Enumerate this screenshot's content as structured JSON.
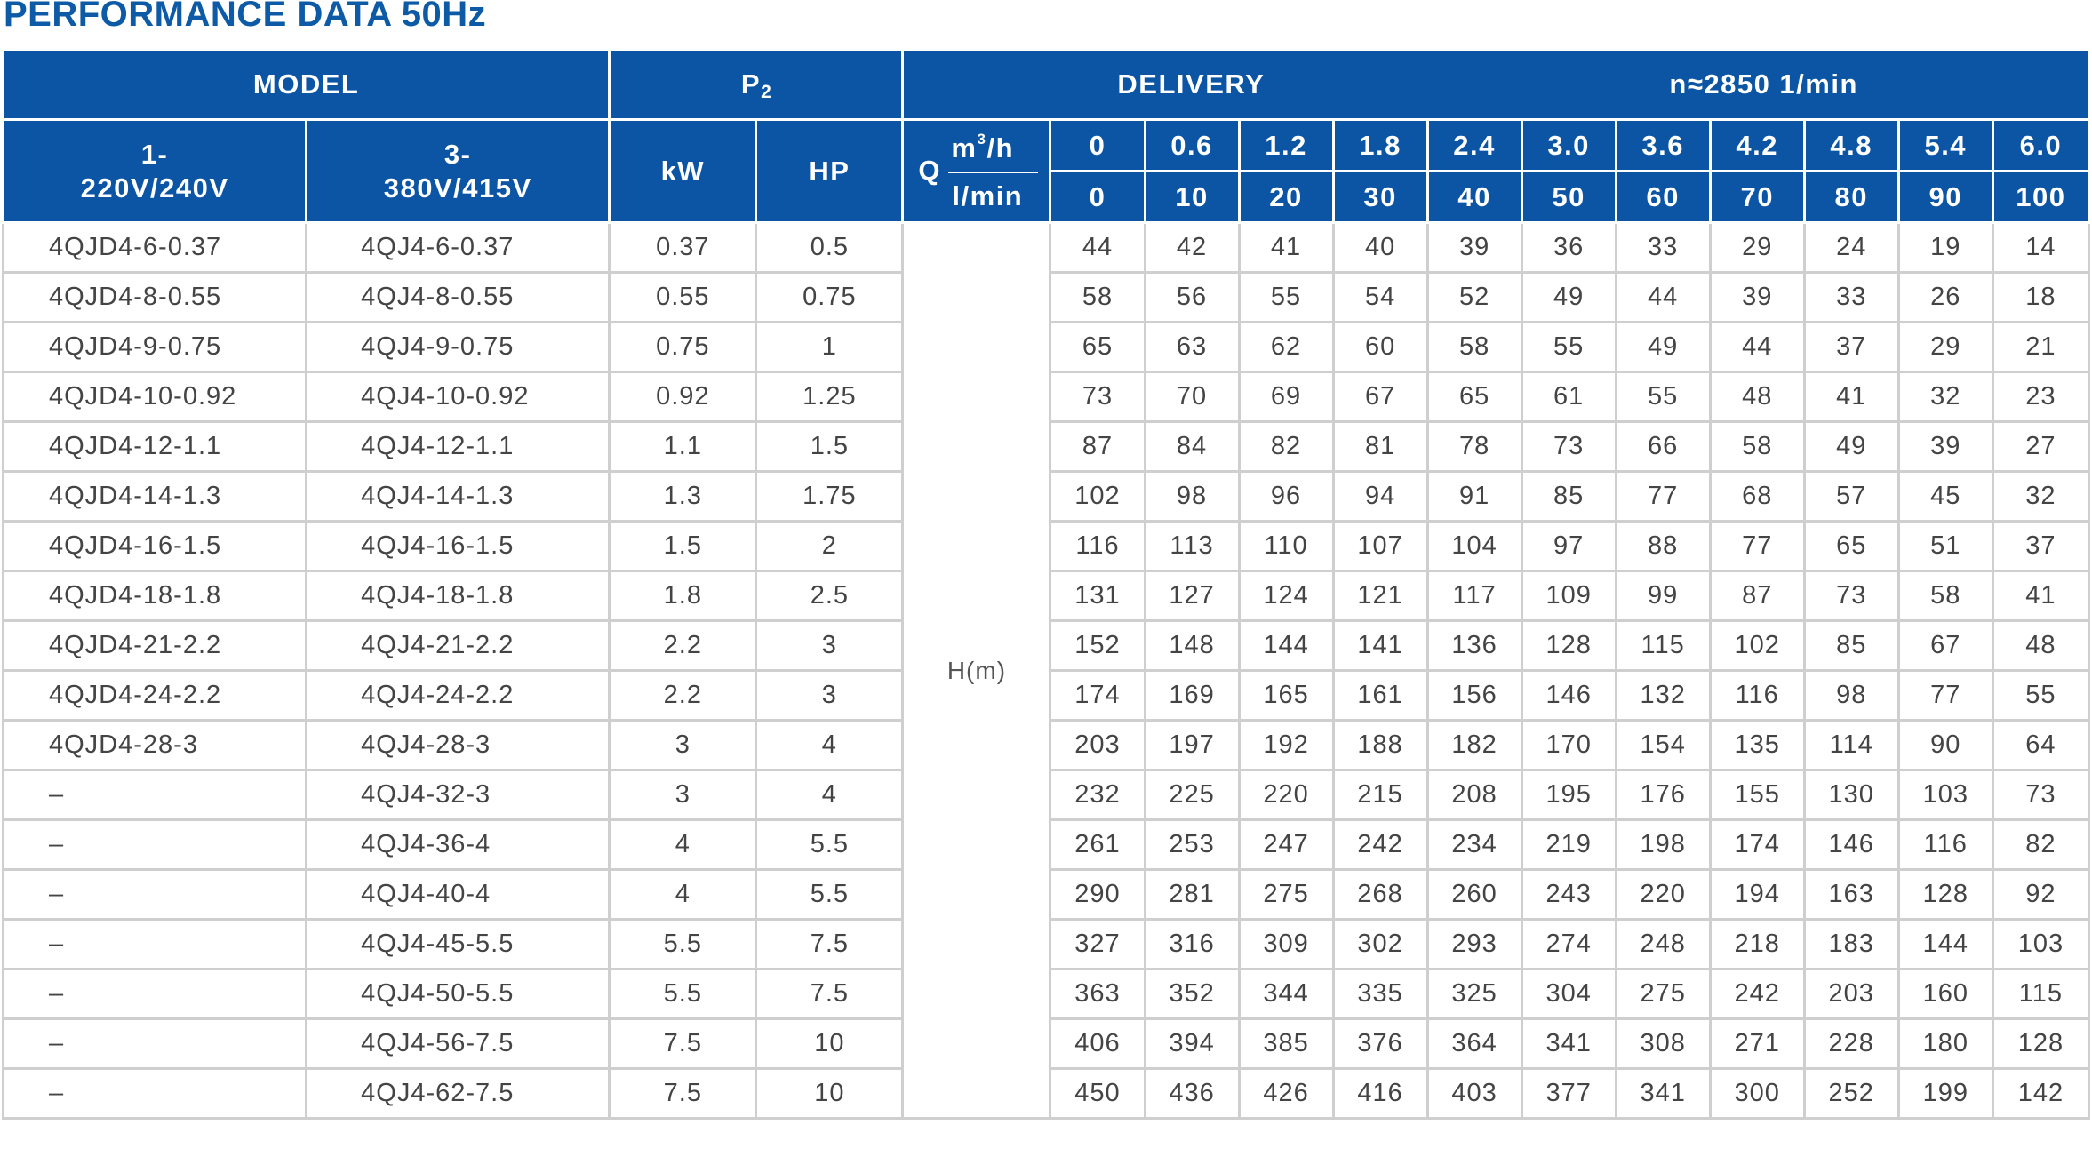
{
  "title": "PERFORMANCE DATA 50Hz",
  "header": {
    "model": "MODEL",
    "p2_letter": "P",
    "p2_subscript": "2",
    "delivery": "DELIVERY",
    "speed": "n≈2850  1/min",
    "model_1ph_line1": "1-",
    "model_1ph_line2": "220V/240V",
    "model_3ph_line1": "3-",
    "model_3ph_line2": "380V/415V",
    "kw": "kW",
    "hp": "HP",
    "q_letter": "Q",
    "unit_m3h_base": "m",
    "unit_m3h_sup": "3",
    "unit_m3h_tail": "/h",
    "unit_lmin": "l/min"
  },
  "flow_m3h": [
    "0",
    "0.6",
    "1.2",
    "1.8",
    "2.4",
    "3.0",
    "3.6",
    "4.2",
    "4.8",
    "5.4",
    "6.0"
  ],
  "flow_lmin": [
    "0",
    "10",
    "20",
    "30",
    "40",
    "50",
    "60",
    "70",
    "80",
    "90",
    "100"
  ],
  "head_label": "H(m)",
  "rows": [
    {
      "m1": "4QJD4-6-0.37",
      "m3": "4QJ4-6-0.37",
      "kw": "0.37",
      "hp": "0.5",
      "h": [
        "44",
        "42",
        "41",
        "40",
        "39",
        "36",
        "33",
        "29",
        "24",
        "19",
        "14"
      ]
    },
    {
      "m1": "4QJD4-8-0.55",
      "m3": "4QJ4-8-0.55",
      "kw": "0.55",
      "hp": "0.75",
      "h": [
        "58",
        "56",
        "55",
        "54",
        "52",
        "49",
        "44",
        "39",
        "33",
        "26",
        "18"
      ]
    },
    {
      "m1": "4QJD4-9-0.75",
      "m3": "4QJ4-9-0.75",
      "kw": "0.75",
      "hp": "1",
      "h": [
        "65",
        "63",
        "62",
        "60",
        "58",
        "55",
        "49",
        "44",
        "37",
        "29",
        "21"
      ]
    },
    {
      "m1": "4QJD4-10-0.92",
      "m3": "4QJ4-10-0.92",
      "kw": "0.92",
      "hp": "1.25",
      "h": [
        "73",
        "70",
        "69",
        "67",
        "65",
        "61",
        "55",
        "48",
        "41",
        "32",
        "23"
      ]
    },
    {
      "m1": "4QJD4-12-1.1",
      "m3": "4QJ4-12-1.1",
      "kw": "1.1",
      "hp": "1.5",
      "h": [
        "87",
        "84",
        "82",
        "81",
        "78",
        "73",
        "66",
        "58",
        "49",
        "39",
        "27"
      ]
    },
    {
      "m1": "4QJD4-14-1.3",
      "m3": "4QJ4-14-1.3",
      "kw": "1.3",
      "hp": "1.75",
      "h": [
        "102",
        "98",
        "96",
        "94",
        "91",
        "85",
        "77",
        "68",
        "57",
        "45",
        "32"
      ]
    },
    {
      "m1": "4QJD4-16-1.5",
      "m3": "4QJ4-16-1.5",
      "kw": "1.5",
      "hp": "2",
      "h": [
        "116",
        "113",
        "110",
        "107",
        "104",
        "97",
        "88",
        "77",
        "65",
        "51",
        "37"
      ]
    },
    {
      "m1": "4QJD4-18-1.8",
      "m3": "4QJ4-18-1.8",
      "kw": "1.8",
      "hp": "2.5",
      "h": [
        "131",
        "127",
        "124",
        "121",
        "117",
        "109",
        "99",
        "87",
        "73",
        "58",
        "41"
      ]
    },
    {
      "m1": "4QJD4-21-2.2",
      "m3": "4QJ4-21-2.2",
      "kw": "2.2",
      "hp": "3",
      "h": [
        "152",
        "148",
        "144",
        "141",
        "136",
        "128",
        "115",
        "102",
        "85",
        "67",
        "48"
      ]
    },
    {
      "m1": "4QJD4-24-2.2",
      "m3": "4QJ4-24-2.2",
      "kw": "2.2",
      "hp": "3",
      "h": [
        "174",
        "169",
        "165",
        "161",
        "156",
        "146",
        "132",
        "116",
        "98",
        "77",
        "55"
      ]
    },
    {
      "m1": "4QJD4-28-3",
      "m3": "4QJ4-28-3",
      "kw": "3",
      "hp": "4",
      "h": [
        "203",
        "197",
        "192",
        "188",
        "182",
        "170",
        "154",
        "135",
        "114",
        "90",
        "64"
      ]
    },
    {
      "m1": "–",
      "m3": "4QJ4-32-3",
      "kw": "3",
      "hp": "4",
      "h": [
        "232",
        "225",
        "220",
        "215",
        "208",
        "195",
        "176",
        "155",
        "130",
        "103",
        "73"
      ]
    },
    {
      "m1": "–",
      "m3": "4QJ4-36-4",
      "kw": "4",
      "hp": "5.5",
      "h": [
        "261",
        "253",
        "247",
        "242",
        "234",
        "219",
        "198",
        "174",
        "146",
        "116",
        "82"
      ]
    },
    {
      "m1": "–",
      "m3": "4QJ4-40-4",
      "kw": "4",
      "hp": "5.5",
      "h": [
        "290",
        "281",
        "275",
        "268",
        "260",
        "243",
        "220",
        "194",
        "163",
        "128",
        "92"
      ]
    },
    {
      "m1": "–",
      "m3": "4QJ4-45-5.5",
      "kw": "5.5",
      "hp": "7.5",
      "h": [
        "327",
        "316",
        "309",
        "302",
        "293",
        "274",
        "248",
        "218",
        "183",
        "144",
        "103"
      ]
    },
    {
      "m1": "–",
      "m3": "4QJ4-50-5.5",
      "kw": "5.5",
      "hp": "7.5",
      "h": [
        "363",
        "352",
        "344",
        "335",
        "325",
        "304",
        "275",
        "242",
        "203",
        "160",
        "115"
      ]
    },
    {
      "m1": "–",
      "m3": "4QJ4-56-7.5",
      "kw": "7.5",
      "hp": "10",
      "h": [
        "406",
        "394",
        "385",
        "376",
        "364",
        "341",
        "308",
        "271",
        "228",
        "180",
        "128"
      ]
    },
    {
      "m1": "–",
      "m3": "4QJ4-62-7.5",
      "kw": "7.5",
      "hp": "10",
      "h": [
        "450",
        "436",
        "426",
        "416",
        "403",
        "377",
        "341",
        "300",
        "252",
        "199",
        "142"
      ]
    }
  ],
  "colors": {
    "header_bg": "#0c55a4",
    "title": "#0d5aa6",
    "grid_line": "#cfcfcf",
    "cell_text": "#444444"
  }
}
